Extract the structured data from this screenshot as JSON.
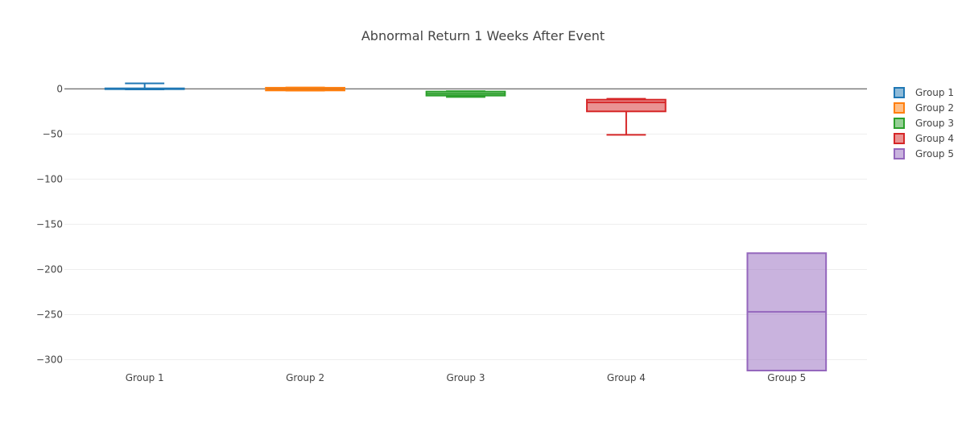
{
  "chart_data": {
    "type": "box",
    "title": "Abnormal Return 1 Weeks After Event",
    "xlabel": "",
    "ylabel": "",
    "ylim": [
      -312,
      27
    ],
    "yticks": [
      0,
      -50,
      -100,
      -150,
      -200,
      -250,
      -300
    ],
    "ytick_labels": [
      "0",
      "−50",
      "−100",
      "−150",
      "−200",
      "−250",
      "−300"
    ],
    "categories": [
      "Group 1",
      "Group 2",
      "Group 3",
      "Group 4",
      "Group 5"
    ],
    "legend_position": "top-right",
    "grid": true,
    "series": [
      {
        "name": "Group 1",
        "color": "#1f77b4",
        "fill": "rgba(31,119,180,0.5)",
        "lowerfence": -0.7,
        "q1": -0.2,
        "median": 0.2,
        "q3": 0.5,
        "upperfence": 6.0
      },
      {
        "name": "Group 2",
        "color": "#ff7f0e",
        "fill": "rgba(255,127,14,0.5)",
        "lowerfence": -2.0,
        "q1": -1.8,
        "median": -1.0,
        "q3": 1.2,
        "upperfence": 1.5
      },
      {
        "name": "Group 3",
        "color": "#2ca02c",
        "fill": "rgba(44,160,44,0.5)",
        "lowerfence": -9.0,
        "q1": -7.5,
        "median": -5.5,
        "q3": -3.0,
        "upperfence": -2.5
      },
      {
        "name": "Group 4",
        "color": "#d62728",
        "fill": "rgba(214,39,40,0.5)",
        "lowerfence": -51.0,
        "q1": -25.0,
        "median": -15.0,
        "q3": -12.0,
        "upperfence": -11.0
      },
      {
        "name": "Group 5",
        "color": "#9467bd",
        "fill": "rgba(148,103,189,0.5)",
        "lowerfence": -312.0,
        "q1": -312.0,
        "median": -247.0,
        "q3": -182.0,
        "upperfence": -182.0
      }
    ]
  }
}
